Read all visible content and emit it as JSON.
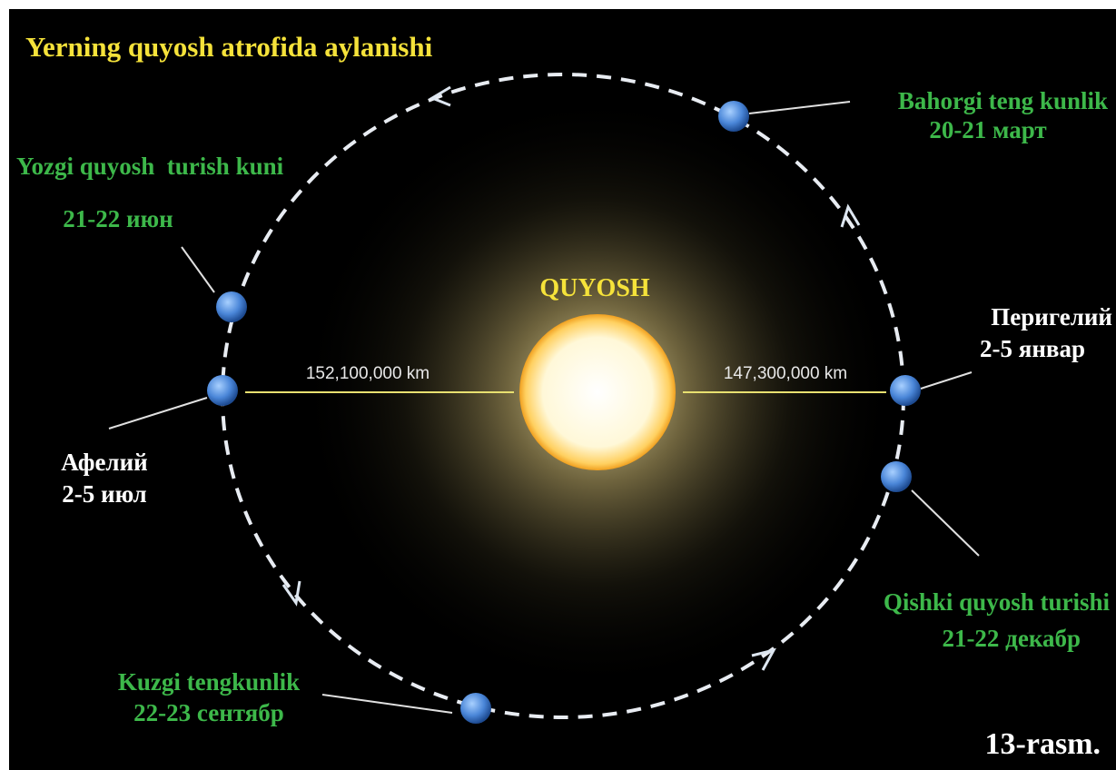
{
  "title": "Yerning quyosh atrofida aylanishi",
  "sun": {
    "label": "QUYOSH"
  },
  "distances": {
    "aphelion": "152,100,000 km",
    "perihelion": "147,300,000 km"
  },
  "points": {
    "spring": {
      "name": "Bahorgi teng kunlik",
      "date": "20-21 март"
    },
    "summer": {
      "name": "Yozgi quyosh  turish kuni",
      "date": "21-22 июн"
    },
    "aphelion": {
      "name": "Афелий",
      "date": "2-5 июл"
    },
    "perihelion": {
      "name": "Перигелий",
      "date": "2-5 январ"
    },
    "winter": {
      "name": "Qishki quyosh turishi",
      "date": "21-22 декабр"
    },
    "autumn": {
      "name": "Kuzgi tengkunlik",
      "date": "22-23 сентябр"
    }
  },
  "caption": "13-rasm."
}
